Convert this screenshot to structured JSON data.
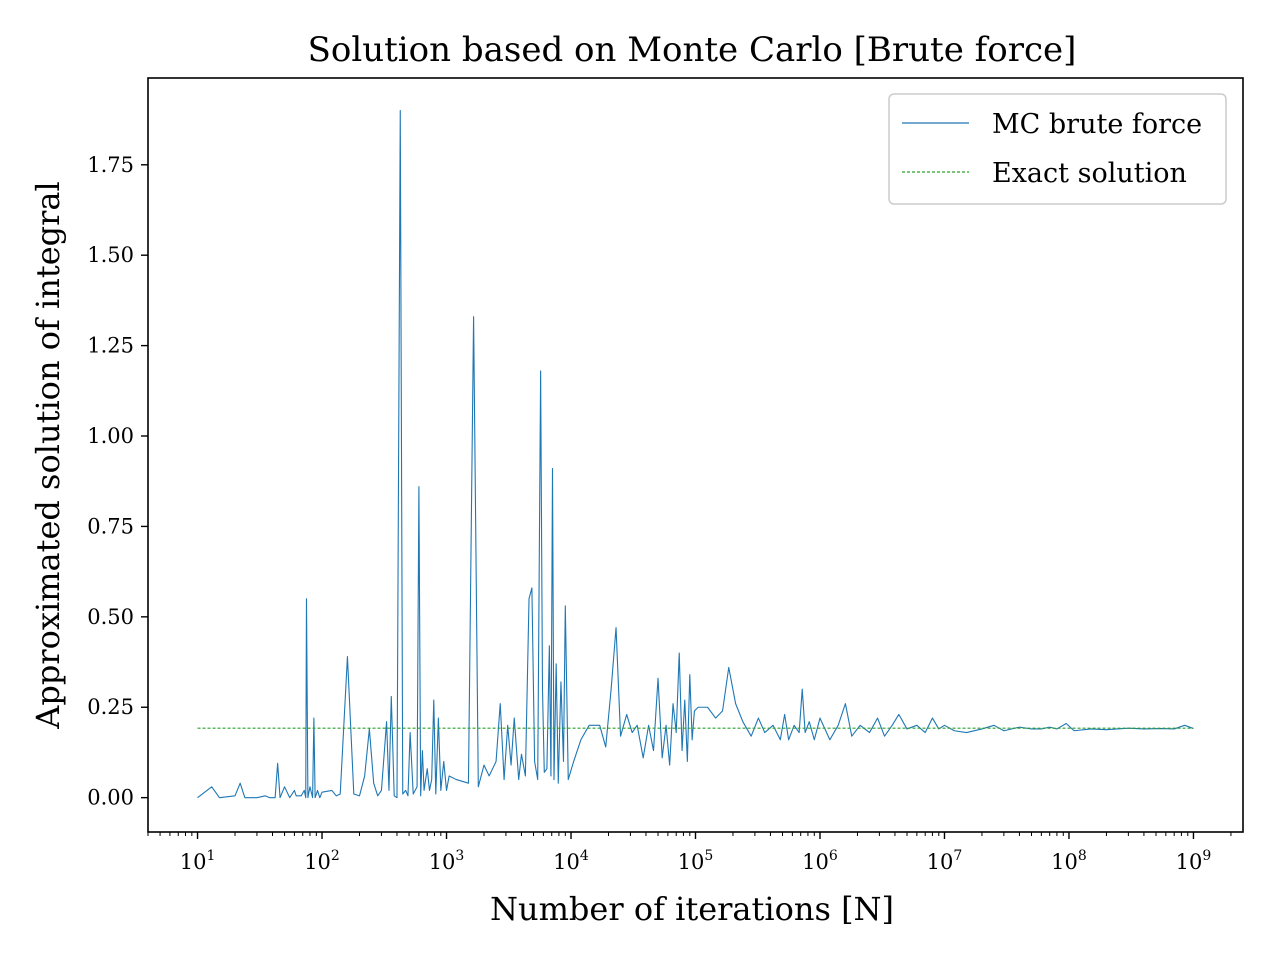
{
  "chart_data": {
    "type": "line",
    "title": "Solution based on Monte Carlo [Brute force]",
    "xlabel": "Number of iterations [N]",
    "ylabel": "Approximated solution of integral",
    "xscale": "log",
    "xlim": [
      4.0,
      2500000000.0
    ],
    "ylim": [
      -0.095,
      1.99
    ],
    "grid": false,
    "legend": {
      "placement": "top-right",
      "entries": [
        {
          "label": "MC brute force",
          "color": "#1f77b4",
          "style": "solid"
        },
        {
          "label": "Exact solution",
          "color": "#2ca02c",
          "style": "dashed"
        }
      ]
    },
    "x_ticks": [
      {
        "base": "10",
        "exp": "1",
        "value": 10
      },
      {
        "base": "10",
        "exp": "2",
        "value": 100
      },
      {
        "base": "10",
        "exp": "3",
        "value": 1000
      },
      {
        "base": "10",
        "exp": "4",
        "value": 10000
      },
      {
        "base": "10",
        "exp": "5",
        "value": 100000
      },
      {
        "base": "10",
        "exp": "6",
        "value": 1000000
      },
      {
        "base": "10",
        "exp": "7",
        "value": 10000000
      },
      {
        "base": "10",
        "exp": "8",
        "value": 100000000
      },
      {
        "base": "10",
        "exp": "9",
        "value": 1000000000
      }
    ],
    "y_ticks": [
      {
        "label": "0.00",
        "value": 0.0
      },
      {
        "label": "0.25",
        "value": 0.25
      },
      {
        "label": "0.50",
        "value": 0.5
      },
      {
        "label": "0.75",
        "value": 0.75
      },
      {
        "label": "1.00",
        "value": 1.0
      },
      {
        "label": "1.25",
        "value": 1.25
      },
      {
        "label": "1.50",
        "value": 1.5
      },
      {
        "label": "1.75",
        "value": 1.75
      }
    ],
    "series": [
      {
        "name": "MC brute force",
        "color": "#1f77b4",
        "points": [
          [
            10,
            0.0
          ],
          [
            13,
            0.03
          ],
          [
            15,
            0.0
          ],
          [
            20,
            0.005
          ],
          [
            22,
            0.04
          ],
          [
            24,
            0.0
          ],
          [
            30,
            0.0
          ],
          [
            35,
            0.005
          ],
          [
            38,
            0.0
          ],
          [
            42,
            0.0
          ],
          [
            44,
            0.095
          ],
          [
            46,
            0.0
          ],
          [
            50,
            0.03
          ],
          [
            55,
            0.0
          ],
          [
            60,
            0.02
          ],
          [
            62,
            0.005
          ],
          [
            68,
            0.005
          ],
          [
            72,
            0.02
          ],
          [
            74,
            0.0
          ],
          [
            75,
            0.55
          ],
          [
            77,
            0.0
          ],
          [
            80,
            0.03
          ],
          [
            84,
            0.0
          ],
          [
            86,
            0.22
          ],
          [
            88,
            0.0
          ],
          [
            92,
            0.02
          ],
          [
            96,
            0.0
          ],
          [
            100,
            0.015
          ],
          [
            120,
            0.02
          ],
          [
            130,
            0.005
          ],
          [
            140,
            0.01
          ],
          [
            160,
            0.39
          ],
          [
            180,
            0.01
          ],
          [
            200,
            0.005
          ],
          [
            220,
            0.06
          ],
          [
            240,
            0.19
          ],
          [
            260,
            0.04
          ],
          [
            280,
            0.005
          ],
          [
            300,
            0.02
          ],
          [
            330,
            0.21
          ],
          [
            345,
            0.02
          ],
          [
            360,
            0.28
          ],
          [
            380,
            0.005
          ],
          [
            400,
            0.0
          ],
          [
            425,
            1.9
          ],
          [
            445,
            0.01
          ],
          [
            470,
            0.02
          ],
          [
            490,
            0.005
          ],
          [
            510,
            0.18
          ],
          [
            540,
            0.01
          ],
          [
            580,
            0.03
          ],
          [
            600,
            0.86
          ],
          [
            620,
            0.005
          ],
          [
            640,
            0.13
          ],
          [
            660,
            0.02
          ],
          [
            700,
            0.08
          ],
          [
            730,
            0.02
          ],
          [
            760,
            0.05
          ],
          [
            790,
            0.27
          ],
          [
            820,
            0.01
          ],
          [
            860,
            0.22
          ],
          [
            900,
            0.02
          ],
          [
            950,
            0.1
          ],
          [
            1000,
            0.02
          ],
          [
            1050,
            0.06
          ],
          [
            1200,
            0.05
          ],
          [
            1500,
            0.04
          ],
          [
            1650,
            1.33
          ],
          [
            1800,
            0.03
          ],
          [
            2000,
            0.09
          ],
          [
            2200,
            0.06
          ],
          [
            2500,
            0.1
          ],
          [
            2700,
            0.26
          ],
          [
            2900,
            0.05
          ],
          [
            3100,
            0.2
          ],
          [
            3300,
            0.09
          ],
          [
            3500,
            0.22
          ],
          [
            3800,
            0.05
          ],
          [
            4000,
            0.12
          ],
          [
            4300,
            0.06
          ],
          [
            4600,
            0.55
          ],
          [
            4850,
            0.58
          ],
          [
            5100,
            0.1
          ],
          [
            5400,
            0.05
          ],
          [
            5700,
            1.18
          ],
          [
            5900,
            0.3
          ],
          [
            6100,
            0.07
          ],
          [
            6400,
            0.08
          ],
          [
            6700,
            0.42
          ],
          [
            6900,
            0.06
          ],
          [
            7100,
            0.91
          ],
          [
            7300,
            0.05
          ],
          [
            7600,
            0.37
          ],
          [
            7900,
            0.04
          ],
          [
            8300,
            0.32
          ],
          [
            8700,
            0.1
          ],
          [
            9000,
            0.53
          ],
          [
            9500,
            0.05
          ],
          [
            10500,
            0.1
          ],
          [
            12000,
            0.16
          ],
          [
            14000,
            0.2
          ],
          [
            17000,
            0.2
          ],
          [
            19000,
            0.14
          ],
          [
            21000,
            0.3
          ],
          [
            23000,
            0.47
          ],
          [
            25000,
            0.17
          ],
          [
            28000,
            0.23
          ],
          [
            31000,
            0.18
          ],
          [
            34000,
            0.2
          ],
          [
            38000,
            0.11
          ],
          [
            42000,
            0.2
          ],
          [
            46000,
            0.13
          ],
          [
            50000,
            0.33
          ],
          [
            54000,
            0.11
          ],
          [
            58000,
            0.2
          ],
          [
            62000,
            0.09
          ],
          [
            66000,
            0.26
          ],
          [
            70000,
            0.18
          ],
          [
            74000,
            0.4
          ],
          [
            78000,
            0.13
          ],
          [
            82000,
            0.27
          ],
          [
            86000,
            0.1
          ],
          [
            90000,
            0.34
          ],
          [
            94000,
            0.16
          ],
          [
            98000,
            0.24
          ],
          [
            105000,
            0.25
          ],
          [
            125000,
            0.25
          ],
          [
            145000,
            0.22
          ],
          [
            165000,
            0.24
          ],
          [
            185000,
            0.36
          ],
          [
            210000,
            0.26
          ],
          [
            240000,
            0.21
          ],
          [
            280000,
            0.17
          ],
          [
            320000,
            0.22
          ],
          [
            360000,
            0.18
          ],
          [
            420000,
            0.2
          ],
          [
            480000,
            0.16
          ],
          [
            520000,
            0.23
          ],
          [
            560000,
            0.16
          ],
          [
            620000,
            0.2
          ],
          [
            680000,
            0.18
          ],
          [
            720000,
            0.3
          ],
          [
            760000,
            0.18
          ],
          [
            820000,
            0.21
          ],
          [
            900000,
            0.16
          ],
          [
            1000000,
            0.22
          ],
          [
            1200000,
            0.16
          ],
          [
            1400000,
            0.2
          ],
          [
            1600000,
            0.26
          ],
          [
            1800000,
            0.17
          ],
          [
            2100000,
            0.2
          ],
          [
            2500000,
            0.18
          ],
          [
            2900000,
            0.22
          ],
          [
            3300000,
            0.17
          ],
          [
            3800000,
            0.2
          ],
          [
            4300000,
            0.23
          ],
          [
            5000000,
            0.19
          ],
          [
            6000000,
            0.2
          ],
          [
            7000000,
            0.18
          ],
          [
            8000000,
            0.22
          ],
          [
            9000000,
            0.19
          ],
          [
            10000000,
            0.2
          ],
          [
            12000000,
            0.185
          ],
          [
            15000000,
            0.18
          ],
          [
            20000000,
            0.19
          ],
          [
            25000000,
            0.2
          ],
          [
            30000000,
            0.185
          ],
          [
            40000000,
            0.195
          ],
          [
            50000000,
            0.19
          ],
          [
            60000000,
            0.19
          ],
          [
            70000000,
            0.195
          ],
          [
            80000000,
            0.19
          ],
          [
            95000000,
            0.205
          ],
          [
            110000000,
            0.185
          ],
          [
            150000000,
            0.19
          ],
          [
            200000000,
            0.188
          ],
          [
            300000000,
            0.192
          ],
          [
            400000000,
            0.19
          ],
          [
            550000000,
            0.191
          ],
          [
            700000000,
            0.19
          ],
          [
            850000000,
            0.2
          ],
          [
            1000000000,
            0.191
          ]
        ]
      },
      {
        "name": "Exact solution",
        "color": "#2ca02c",
        "points": [
          [
            10,
            0.192
          ],
          [
            1000000000,
            0.192
          ]
        ]
      }
    ]
  }
}
